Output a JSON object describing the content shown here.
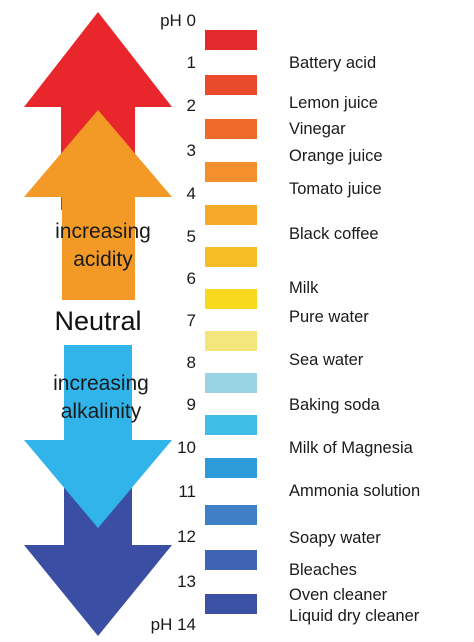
{
  "arrows": {
    "acidity_label": [
      "increasing",
      "acidity"
    ],
    "neutral_label": "Neutral",
    "alkalinity_label": [
      "increasing",
      "alkalinity"
    ],
    "colors": {
      "red": "#e8262c",
      "orange": "#f39a26",
      "cyan": "#31b4ea",
      "navy": "#3a4fa3"
    }
  },
  "scale": {
    "ph_labels": [
      "pH 0",
      "1",
      "2",
      "3",
      "4",
      "5",
      "6",
      "7",
      "8",
      "9",
      "10",
      "11",
      "12",
      "13",
      "pH 14"
    ],
    "swatch_colors": [
      "#e52a2d",
      "#ea4a2c",
      "#ee6a2a",
      "#f3902d",
      "#f5a92a",
      "#f6bd25",
      "#f8d91d",
      "#f2e67c",
      "#98d4e4",
      "#3fbde8",
      "#2e9bd9",
      "#3f7fc6",
      "#3e64b3",
      "#3b51a4",
      "#3a46a0"
    ],
    "examples": [
      "Battery acid",
      "Lemon juice",
      "Vinegar",
      "Orange juice",
      "Tomato juice",
      "Black coffee",
      "Milk",
      "Pure water",
      "Sea water",
      "Baking soda",
      "Milk of Magnesia",
      "Ammonia solution",
      "Soapy water",
      "Bleaches",
      "Oven cleaner",
      "Liquid dry cleaner"
    ]
  }
}
